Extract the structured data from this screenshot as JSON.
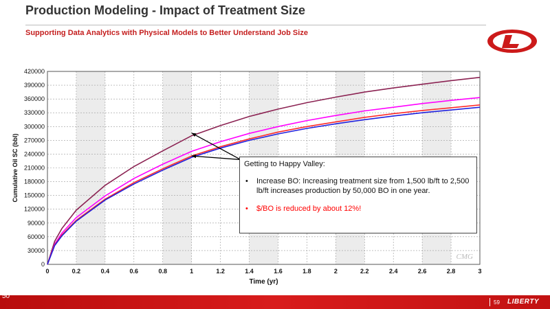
{
  "slide": {
    "title": "Production Modeling - Impact of Treatment Size",
    "subtitle": "Supporting Data Analytics with Physical Models to Better Understand Job Size"
  },
  "callout": {
    "heading": "Getting to Happy Valley:",
    "bullets": [
      "Increase BO: Increasing treatment size from 1,500 lb/ft to 2,500 lb/ft increases production by 50,000 BO in one year.",
      "$/BO is reduced by about 12%!"
    ],
    "bullet_glyph": "•",
    "highlight_color": "#ff0000"
  },
  "footer": {
    "page_number": "59",
    "brand": "LIBERTY",
    "left_label": "50"
  },
  "chart_data": {
    "type": "line",
    "xlabel": "Time (yr)",
    "ylabel": "Cumulative Oil SC (bbl)",
    "xlim": [
      0,
      3
    ],
    "ylim": [
      0,
      420000
    ],
    "xticks": [
      "0",
      "0.2",
      "0.4",
      "0.6",
      "0.8",
      "1",
      "1.2",
      "1.4",
      "1.6",
      "1.8",
      "2",
      "2.2",
      "2.4",
      "2.6",
      "2.8",
      "3"
    ],
    "yticks": [
      "0",
      "30000",
      "60000",
      "90000",
      "120000",
      "150000",
      "180000",
      "210000",
      "240000",
      "270000",
      "300000",
      "330000",
      "360000",
      "390000",
      "420000"
    ],
    "grid": true,
    "watermark": "CMG",
    "x": [
      0,
      0.05,
      0.1,
      0.2,
      0.4,
      0.6,
      0.8,
      1.0,
      1.2,
      1.4,
      1.6,
      1.8,
      2.0,
      2.2,
      2.4,
      2.6,
      2.8,
      3.0
    ],
    "series": [
      {
        "color": "#8b2252",
        "values": [
          0,
          50000,
          78000,
          118000,
          172000,
          213000,
          247000,
          280000,
          302000,
          322000,
          338000,
          352000,
          364000,
          375000,
          384000,
          392000,
          400000,
          407000
        ]
      },
      {
        "color": "#ff00ff",
        "values": [
          0,
          44000,
          68000,
          102000,
          149000,
          187000,
          218000,
          246000,
          267000,
          285000,
          300000,
          313000,
          324000,
          334000,
          342000,
          350000,
          357000,
          363000
        ]
      },
      {
        "color": "#ff2a2a",
        "values": [
          0,
          42000,
          64000,
          96000,
          142000,
          178000,
          208000,
          236000,
          256000,
          273000,
          288000,
          300000,
          310000,
          320000,
          328000,
          335000,
          341000,
          347000
        ]
      },
      {
        "color": "#2020dd",
        "values": [
          0,
          41000,
          62000,
          94000,
          140000,
          175000,
          205000,
          233000,
          253000,
          270000,
          284000,
          296000,
          306000,
          315000,
          323000,
          330000,
          336000,
          342000
        ]
      }
    ],
    "annotation_arrows": [
      {
        "from": [
          1.34,
          228000
        ],
        "to": [
          1.0,
          286000
        ]
      },
      {
        "from": [
          1.34,
          228000
        ],
        "to": [
          1.0,
          236000
        ]
      }
    ]
  }
}
